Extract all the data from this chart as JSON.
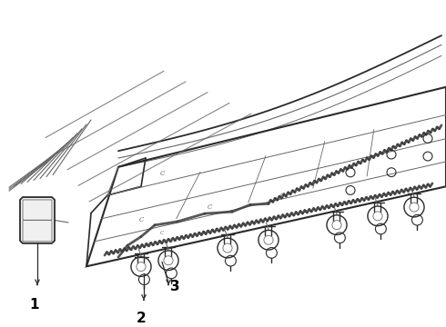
{
  "bg_color": "#ffffff",
  "line_color": "#2a2a2a",
  "gray_color": "#666666",
  "light_gray": "#999999",
  "figsize": [
    4.9,
    3.6
  ],
  "dpi": 100,
  "labels": [
    "1",
    "2",
    "3"
  ],
  "label_fontsize": 11
}
